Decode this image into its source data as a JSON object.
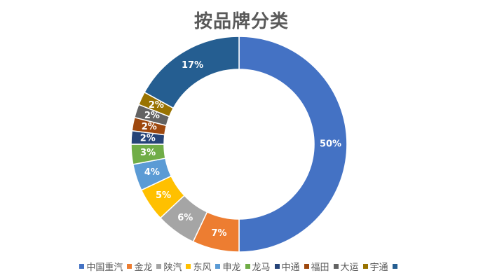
{
  "chart_data": {
    "type": "pie",
    "variant": "donut",
    "title": "按品牌分类",
    "legend_position": "bottom",
    "slices": [
      {
        "name": "中国重汽",
        "value": 50,
        "label": "50%",
        "color": "#4472C4"
      },
      {
        "name": "金龙",
        "value": 7,
        "label": "7%",
        "color": "#ED7D31"
      },
      {
        "name": "陕汽",
        "value": 6,
        "label": "6%",
        "color": "#A5A5A5"
      },
      {
        "name": "东风",
        "value": 5,
        "label": "5%",
        "color": "#FFC000"
      },
      {
        "name": "申龙",
        "value": 4,
        "label": "4%",
        "color": "#5B9BD5"
      },
      {
        "name": "龙马",
        "value": 3,
        "label": "3%",
        "color": "#70AD47"
      },
      {
        "name": "中通",
        "value": 2,
        "label": "2%",
        "color": "#264478"
      },
      {
        "name": "福田",
        "value": 2,
        "label": "2%",
        "color": "#9E480E"
      },
      {
        "name": "大运",
        "value": 2,
        "label": "2%",
        "color": "#636363"
      },
      {
        "name": "宇通",
        "value": 2,
        "label": "2%",
        "color": "#997300"
      },
      {
        "name": "",
        "value": 17,
        "label": "17%",
        "color": "#255E91"
      }
    ]
  }
}
